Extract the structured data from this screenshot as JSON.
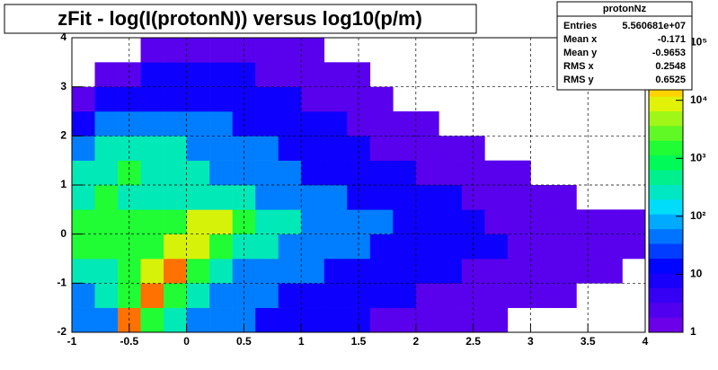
{
  "chart_data": {
    "type": "heatmap",
    "title": "zFit - log(I(protonN)) versus log10(p/m)",
    "xlim": [
      -1,
      4
    ],
    "ylim": [
      -2,
      4
    ],
    "xticks": [
      -1,
      -0.5,
      0,
      0.5,
      1,
      1.5,
      2,
      2.5,
      3,
      3.5,
      4
    ],
    "yticks": [
      -2,
      -1,
      0,
      1,
      2,
      3,
      4
    ],
    "grid": true,
    "zlog": true,
    "zlim": [
      1,
      120000
    ],
    "zticks": [
      1,
      10,
      {
        "value": 100,
        "label": "10²"
      },
      {
        "value": 1000,
        "label": "10³"
      },
      {
        "value": 10000,
        "label": "10⁴"
      },
      {
        "value": 100000,
        "label": "10⁵"
      }
    ],
    "xbins": [
      -1,
      -0.8,
      -0.6,
      -0.4,
      -0.2,
      0,
      0.2,
      0.4,
      0.6,
      0.8,
      1,
      1.2,
      1.4,
      1.6,
      1.8,
      2,
      2.2,
      2.4,
      2.6,
      2.8,
      3,
      3.2,
      3.4,
      3.6,
      3.8,
      4
    ],
    "ybins": [
      -2,
      -1.5,
      -1,
      -0.5,
      0,
      0.5,
      1,
      1.5,
      2,
      2.5,
      3,
      3.5,
      4
    ],
    "z": [
      [
        50,
        50,
        40000,
        1500,
        300,
        50,
        50,
        50,
        10,
        10,
        10,
        10,
        10,
        2,
        2,
        2,
        2,
        2,
        2,
        0,
        0,
        0,
        0,
        0,
        0
      ],
      [
        50,
        300,
        1500,
        40000,
        1500,
        300,
        50,
        50,
        50,
        10,
        10,
        10,
        10,
        10,
        10,
        2,
        2,
        2,
        2,
        2,
        2,
        2,
        0,
        0,
        0
      ],
      [
        300,
        300,
        1500,
        8000,
        40000,
        1500,
        300,
        50,
        50,
        50,
        50,
        10,
        10,
        10,
        10,
        10,
        10,
        2,
        2,
        2,
        2,
        2,
        2,
        2,
        0
      ],
      [
        1500,
        1500,
        1500,
        1500,
        8000,
        8000,
        1500,
        300,
        300,
        50,
        50,
        50,
        50,
        10,
        10,
        10,
        10,
        10,
        10,
        2,
        2,
        2,
        2,
        2,
        2
      ],
      [
        1500,
        1500,
        1500,
        1500,
        1500,
        8000,
        8000,
        1500,
        300,
        300,
        50,
        50,
        50,
        50,
        10,
        10,
        10,
        10,
        2,
        2,
        2,
        2,
        2,
        2,
        2
      ],
      [
        300,
        1500,
        300,
        300,
        300,
        300,
        300,
        300,
        50,
        50,
        50,
        50,
        10,
        10,
        10,
        10,
        10,
        2,
        2,
        2,
        2,
        2,
        0,
        0,
        0
      ],
      [
        300,
        300,
        1500,
        300,
        300,
        300,
        50,
        50,
        50,
        50,
        10,
        10,
        10,
        10,
        10,
        2,
        2,
        2,
        2,
        2,
        0,
        0,
        0,
        0,
        0
      ],
      [
        50,
        300,
        300,
        300,
        300,
        50,
        50,
        50,
        50,
        10,
        10,
        10,
        10,
        2,
        2,
        2,
        2,
        2,
        0,
        0,
        0,
        0,
        0,
        0,
        0
      ],
      [
        10,
        50,
        50,
        50,
        50,
        50,
        50,
        10,
        10,
        10,
        10,
        10,
        2,
        2,
        2,
        2,
        0,
        0,
        0,
        0,
        0,
        0,
        0,
        0,
        0
      ],
      [
        2,
        10,
        10,
        10,
        10,
        10,
        10,
        10,
        10,
        10,
        2,
        2,
        2,
        2,
        0,
        0,
        0,
        0,
        0,
        0,
        0,
        0,
        0,
        0,
        0
      ],
      [
        0,
        2,
        2,
        10,
        10,
        10,
        10,
        10,
        2,
        2,
        2,
        2,
        2,
        0,
        0,
        0,
        0,
        0,
        0,
        0,
        0,
        0,
        0,
        0,
        0
      ],
      [
        0,
        0,
        0,
        2,
        2,
        2,
        2,
        2,
        2,
        2,
        2,
        0,
        0,
        0,
        0,
        0,
        0,
        0,
        0,
        0,
        0,
        0,
        0,
        0,
        0
      ]
    ],
    "stats": {
      "title": "protonNz",
      "rows": [
        {
          "label": "Entries",
          "value": "5.560681e+07"
        },
        {
          "label": "Mean x",
          "value": "-0.171"
        },
        {
          "label": "Mean y",
          "value": "-0.9653"
        },
        {
          "label": "RMS x",
          "value": "0.2548"
        },
        {
          "label": "RMS y",
          "value": "0.6525"
        }
      ]
    }
  }
}
